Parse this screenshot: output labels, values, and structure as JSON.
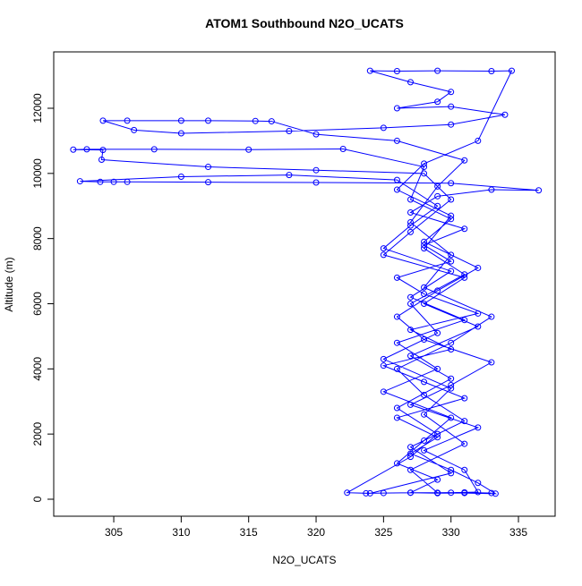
{
  "chart_data": {
    "type": "line",
    "title": "ATOM1 Southbound N2O_UCATS",
    "x_label": "N2O_UCATS",
    "y_label": "Altitude (m)",
    "color": "#0000ff",
    "markers": true,
    "xlim": [
      300.55,
      337.72
    ],
    "ylim": [
      -522,
      13730
    ],
    "xticks": [
      305,
      310,
      315,
      320,
      325,
      330,
      335
    ],
    "yticks": [
      0,
      2000,
      4000,
      6000,
      8000,
      10000,
      12000
    ],
    "x": [
      323.7,
      325,
      327,
      329,
      331,
      333.3,
      332,
      330,
      327,
      329,
      326,
      331,
      328,
      325,
      330,
      327,
      332,
      328,
      326,
      330,
      328,
      331,
      327,
      329,
      333,
      336.5,
      330,
      320,
      312,
      306,
      305,
      304,
      302.5,
      310,
      318,
      326,
      329,
      327,
      325,
      330,
      327,
      331,
      326,
      329,
      325,
      330,
      328,
      326,
      329,
      327,
      330,
      332,
      331,
      328,
      332,
      327,
      330,
      333,
      328,
      326,
      329,
      332,
      328,
      330,
      327,
      328,
      322,
      315,
      308,
      303,
      302,
      304.2,
      304.1,
      312,
      320,
      328,
      330,
      327,
      325,
      331,
      328,
      332,
      327,
      330,
      326,
      329,
      327,
      322.3,
      324,
      330,
      327,
      331,
      328,
      326,
      330,
      333,
      328,
      330,
      327,
      329,
      331,
      326,
      320,
      316.7,
      315.5,
      312,
      310,
      306,
      304.2,
      306.5,
      310,
      318,
      325,
      330,
      334,
      330,
      326,
      329,
      330,
      327,
      324,
      326,
      329,
      333,
      334.5,
      332,
      328,
      326,
      330,
      328,
      331,
      327,
      329,
      325,
      330,
      328,
      331,
      327,
      329,
      331,
      333
    ],
    "values": [
      180,
      190,
      200,
      185,
      190,
      170,
      500,
      900,
      1400,
      1900,
      2500,
      3100,
      3600,
      4100,
      4600,
      5200,
      5700,
      6300,
      6800,
      7300,
      7800,
      8300,
      8800,
      9300,
      9500,
      9480,
      9700,
      9720,
      9730,
      9740,
      9740,
      9740,
      9760,
      9900,
      9950,
      9800,
      9000,
      8400,
      7700,
      7000,
      6200,
      5500,
      4800,
      4000,
      3300,
      2500,
      1800,
      1100,
      600,
      200,
      200,
      220,
      900,
      1500,
      2200,
      2900,
      3500,
      4200,
      4900,
      5600,
      6400,
      7100,
      7900,
      8600,
      9200,
      10200,
      10750,
      10730,
      10740,
      10740,
      10730,
      10720,
      10420,
      10200,
      10100,
      10000,
      9200,
      8200,
      7500,
      6800,
      6000,
      5300,
      4400,
      3700,
      2800,
      2000,
      1300,
      200,
      180,
      800,
      1600,
      2400,
      3200,
      4000,
      4800,
      5600,
      6500,
      7500,
      8500,
      9600,
      10400,
      11000,
      11200,
      11600,
      11610,
      11620,
      11620,
      11620,
      11620,
      11330,
      11230,
      11300,
      11400,
      11500,
      11800,
      12050,
      12000,
      12200,
      12500,
      12800,
      13150,
      13140,
      13150,
      13140,
      13150,
      11000,
      10300,
      9500,
      8700,
      7700,
      6900,
      6000,
      5100,
      4300,
      3400,
      2600,
      1700,
      900,
      200,
      210,
      190
    ]
  }
}
